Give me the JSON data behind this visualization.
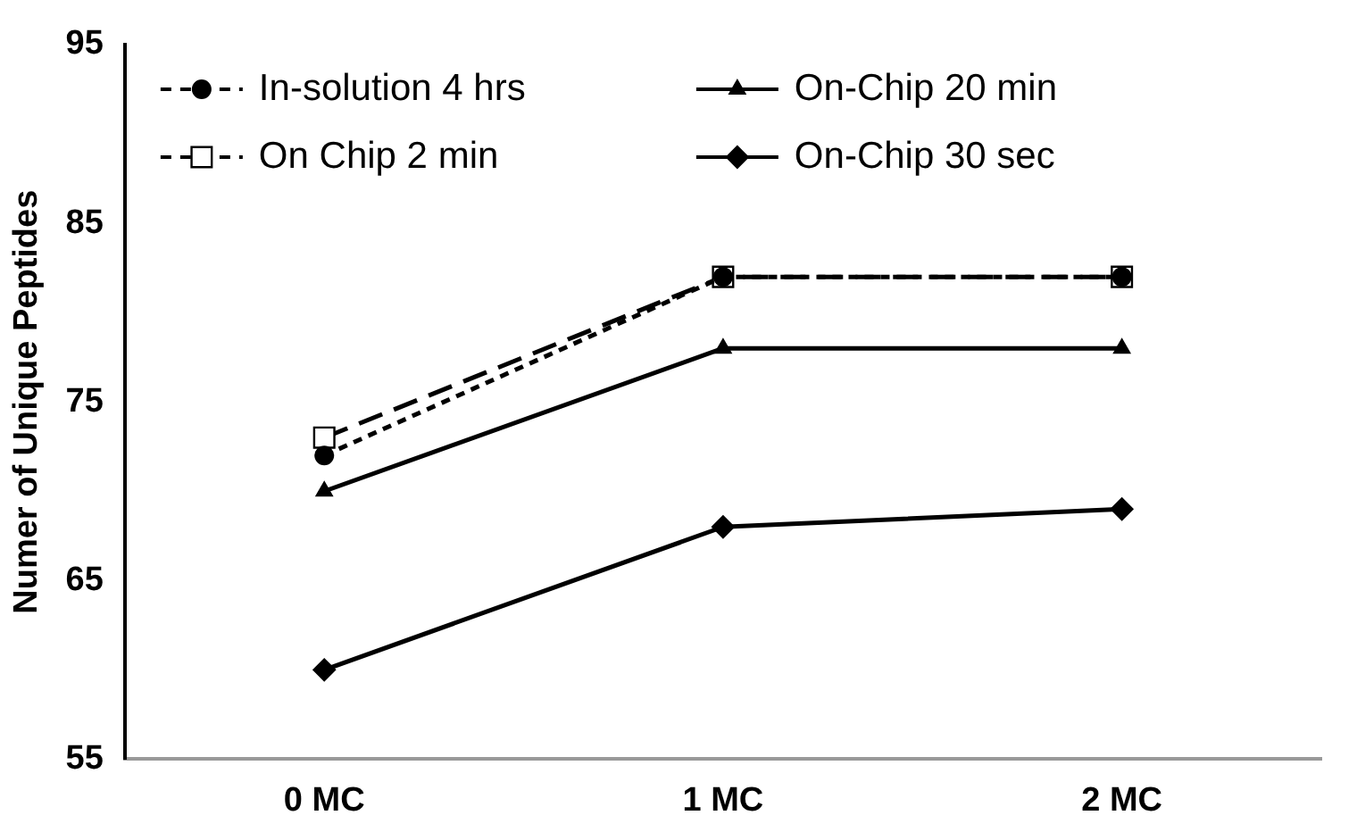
{
  "chart_data": {
    "type": "line",
    "ylabel": "Numer of Unique Peptides",
    "categories": [
      "0 MC",
      "1 MC",
      "2 MC"
    ],
    "ylim": [
      55,
      95
    ],
    "yticks": [
      55,
      65,
      75,
      85,
      95
    ],
    "grid": false,
    "legend": "top left",
    "series": [
      {
        "name": "In-solution 4 hrs",
        "color": "#000000",
        "values": [
          72,
          82,
          82
        ],
        "marker": "circle",
        "line_style": "dotted"
      },
      {
        "name": "On-Chip 20 min",
        "color": "#000000",
        "values": [
          70,
          78,
          78
        ],
        "marker": "triangle",
        "line_style": "solid"
      },
      {
        "name": "On Chip 2 min",
        "color": "#000000",
        "values": [
          73,
          82,
          82
        ],
        "marker": "square",
        "line_style": "dashed"
      },
      {
        "name": "On-Chip 30 sec",
        "color": "#000000",
        "values": [
          60,
          68,
          69
        ],
        "marker": "diamond",
        "line_style": "solid"
      }
    ]
  }
}
